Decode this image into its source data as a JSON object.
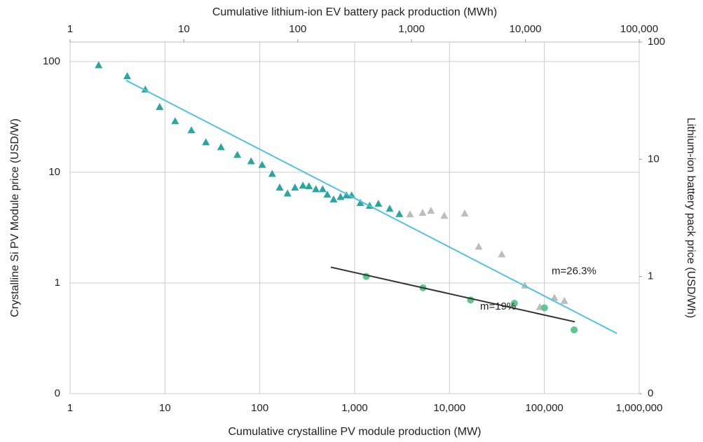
{
  "chart_data": {
    "type": "scatter",
    "log_x": true,
    "log_y": true,
    "grid": true,
    "x_label": "Cumulative crystalline PV module production (MW)",
    "x2_label": "Cumulative lithium-ion EV battery pack production (MWh)",
    "y_label": "Crystalline Si PV Module price (USD/W)",
    "y2_label": "Lithium-ion battery pack price (USD/Wh)",
    "xlim": [
      1,
      1000000
    ],
    "xticks": [
      1,
      10,
      100,
      {
        "value": 1000,
        "label": "1,000"
      },
      {
        "value": 10000,
        "label": "10,000"
      },
      {
        "value": 100000,
        "label": "100,000"
      },
      {
        "value": 1000000,
        "label": "1,000,000"
      }
    ],
    "x2lim": [
      1,
      100000
    ],
    "x2ticks": [
      1,
      10,
      100,
      {
        "value": 1000,
        "label": "1,000"
      },
      {
        "value": 10000,
        "label": "10,000"
      },
      {
        "value": 100000,
        "label": "100,000"
      }
    ],
    "ylim": [
      0.1,
      150
    ],
    "yticks": [
      {
        "value": 0.1,
        "label": "0"
      },
      1,
      10,
      100
    ],
    "y2lim": [
      0.1,
      100
    ],
    "y2ticks": [
      {
        "value": 0.1,
        "label": "0"
      },
      1,
      10,
      100
    ],
    "series": [
      {
        "marker": "triangle",
        "color": "#2aa6a0",
        "x": [
          2,
          4,
          6.2,
          8.8,
          12.8,
          19,
          27,
          39,
          58,
          81,
          106,
          135,
          162,
          196,
          235,
          285,
          330,
          390,
          460,
          515,
          600,
          710,
          820,
          930,
          1150,
          1440,
          1780,
          2340,
          2960
        ],
        "values": [
          93,
          74,
          56,
          39,
          29,
          24,
          18.7,
          16.9,
          14.4,
          12.6,
          11.7,
          9.7,
          7.3,
          6.45,
          7.3,
          7.6,
          7.5,
          7.05,
          7.05,
          6.3,
          5.7,
          6,
          6.2,
          6.2,
          5.3,
          5,
          5.2,
          4.7,
          4.2
        ]
      },
      {
        "marker": "triangle",
        "color": "#bdbdbd",
        "axis": "y2",
        "x_axis": "x2",
        "x": [
          970,
          1250,
          1480,
          1940,
          2930,
          3890,
          6200,
          9900,
          13400,
          18000,
          22000
        ],
        "values": [
          3.4,
          3.5,
          3.65,
          3.3,
          3.45,
          1.8,
          1.55,
          0.84,
          0.55,
          0.66,
          0.62
        ]
      },
      {
        "marker": "circle",
        "color": "#5ec68e",
        "axis": "y2",
        "x_axis": "x2",
        "x": [
          400,
          1260,
          3300,
          8000,
          14700,
          26800
        ],
        "values": [
          1,
          0.8,
          0.63,
          0.59,
          0.54,
          0.35
        ]
      },
      {
        "marker": "line",
        "color": "#4fc3e0",
        "x": [
          3.9,
          582000
        ],
        "values": [
          67.5,
          0.35
        ]
      },
      {
        "marker": "line",
        "color": "#333333",
        "axis": "y2",
        "x_axis": "x2",
        "x": [
          195,
          27200
        ],
        "values": [
          1.2,
          0.41
        ]
      }
    ],
    "annotations": [
      {
        "text": "m=26.3%",
        "x": 17000,
        "y": 1.1,
        "axis": "y2",
        "x_axis": "x2"
      },
      {
        "text": "m=19%",
        "x": 4000,
        "y": 0.55,
        "axis": "y2",
        "x_axis": "x2"
      }
    ]
  }
}
